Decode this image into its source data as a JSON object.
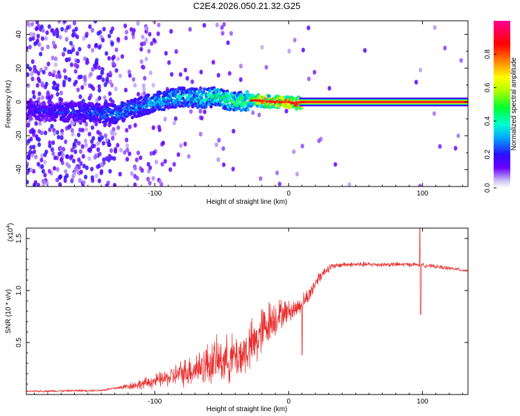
{
  "title": "C2E4.2026.050.21.32.G25",
  "chart_data": [
    {
      "type": "heatmap",
      "title": "C2E4.2026.050.21.32.G25",
      "xlabel": "Height of straight line (km)",
      "ylabel": "Frequency (Hz)",
      "xlim": [
        -196,
        134
      ],
      "ylim": [
        -50,
        48
      ],
      "xticks": [
        -100,
        0,
        100
      ],
      "yticks": [
        -40,
        -20,
        0,
        20,
        40
      ],
      "colorbar": {
        "label": "Normalized spectral amplitude",
        "range": [
          0,
          1
        ],
        "ticks": [
          0.0,
          0.2,
          0.4,
          0.6,
          0.8
        ],
        "stops": [
          "#cfc7f2",
          "#6a00ff",
          "#0030ff",
          "#00d8ff",
          "#00ff40",
          "#ffff00",
          "#ff8000",
          "#ff0000",
          "#ff0090"
        ]
      },
      "ridge_center_hz": [
        {
          "x": -190,
          "f": -5
        },
        {
          "x": -170,
          "f": -6
        },
        {
          "x": -150,
          "f": -6
        },
        {
          "x": -130,
          "f": -7
        },
        {
          "x": -115,
          "f": -4
        },
        {
          "x": -100,
          "f": 0
        },
        {
          "x": -80,
          "f": 3
        },
        {
          "x": -65,
          "f": 2
        },
        {
          "x": -55,
          "f": 3
        },
        {
          "x": -40,
          "f": 0
        },
        {
          "x": -25,
          "f": 1
        },
        {
          "x": -10,
          "f": 0
        },
        {
          "x": 0,
          "f": 0
        },
        {
          "x": 5,
          "f": -1
        },
        {
          "x": 10,
          "f": 0
        },
        {
          "x": 50,
          "f": 0
        },
        {
          "x": 100,
          "f": 0
        },
        {
          "x": 134,
          "f": 0
        }
      ],
      "ridge_amplitude": [
        {
          "x": -196,
          "a": 0.2
        },
        {
          "x": -130,
          "a": 0.3
        },
        {
          "x": -100,
          "a": 0.35
        },
        {
          "x": -60,
          "a": 0.45
        },
        {
          "x": -30,
          "a": 0.55
        },
        {
          "x": -20,
          "a": 0.85
        },
        {
          "x": 10,
          "a": 0.95
        },
        {
          "x": 134,
          "a": 1.0
        }
      ]
    },
    {
      "type": "line",
      "xlabel": "Height of straight line (km)",
      "ylabel": "SNR (10 * v/v)",
      "y_multiplier_label": "(x10",
      "y_multiplier_exp": "4",
      "y_multiplier_close": ")",
      "xlim": [
        -196,
        134
      ],
      "ylim": [
        0,
        1.6
      ],
      "xticks": [
        -100,
        0,
        100
      ],
      "yticks": [
        0.5,
        1.0,
        1.5
      ],
      "ytick_labels": [
        "0.5",
        "1.0",
        "1.5"
      ],
      "color": "#e83030",
      "series": [
        {
          "name": "SNR",
          "baseline": [
            {
              "x": -196,
              "y": 0.03
            },
            {
              "x": -140,
              "y": 0.04
            },
            {
              "x": -125,
              "y": 0.07
            },
            {
              "x": -110,
              "y": 0.1
            },
            {
              "x": -90,
              "y": 0.16
            },
            {
              "x": -70,
              "y": 0.25
            },
            {
              "x": -55,
              "y": 0.32
            },
            {
              "x": -45,
              "y": 0.34
            },
            {
              "x": -35,
              "y": 0.38
            },
            {
              "x": -25,
              "y": 0.5
            },
            {
              "x": -15,
              "y": 0.7
            },
            {
              "x": -5,
              "y": 0.78
            },
            {
              "x": 5,
              "y": 0.82
            },
            {
              "x": 15,
              "y": 0.95
            },
            {
              "x": 22,
              "y": 1.12
            },
            {
              "x": 30,
              "y": 1.22
            },
            {
              "x": 40,
              "y": 1.25
            },
            {
              "x": 95,
              "y": 1.25
            },
            {
              "x": 110,
              "y": 1.23
            },
            {
              "x": 134,
              "y": 1.19
            }
          ],
          "noise_amplitude": [
            {
              "x": -196,
              "a": 0.01
            },
            {
              "x": -130,
              "a": 0.015
            },
            {
              "x": -115,
              "a": 0.05
            },
            {
              "x": -90,
              "a": 0.1
            },
            {
              "x": -60,
              "a": 0.25
            },
            {
              "x": -35,
              "a": 0.28
            },
            {
              "x": -20,
              "a": 0.3
            },
            {
              "x": 0,
              "a": 0.12
            },
            {
              "x": 20,
              "a": 0.08
            },
            {
              "x": 35,
              "a": 0.03
            },
            {
              "x": 134,
              "a": 0.02
            }
          ],
          "spikes": [
            {
              "x": 10,
              "y": 0.38
            },
            {
              "x": 98,
              "y": 1.6
            },
            {
              "x": 98.6,
              "y": 0.77
            }
          ]
        }
      ]
    }
  ]
}
